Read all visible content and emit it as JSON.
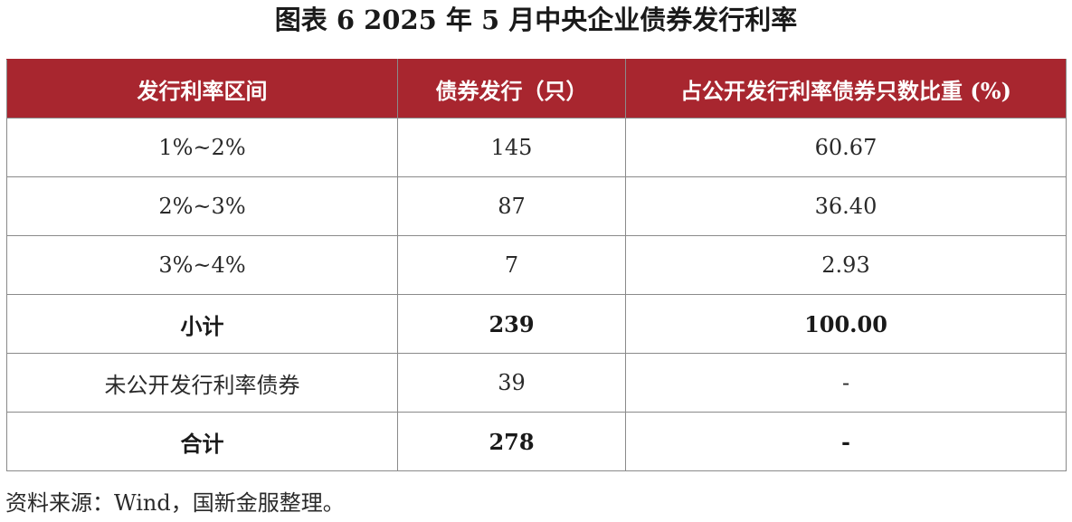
{
  "title": "图表 6  2025 年 5 月中央企业债券发行利率",
  "table": {
    "headers": [
      "发行利率区间",
      "债券发行（只）",
      "占公开发行利率债券只数比重 (%)"
    ],
    "rows": [
      {
        "cells": [
          "1%~2%",
          "145",
          "60.67"
        ],
        "bold": false
      },
      {
        "cells": [
          "2%~3%",
          "87",
          "36.40"
        ],
        "bold": false
      },
      {
        "cells": [
          "3%~4%",
          "7",
          "2.93"
        ],
        "bold": false
      },
      {
        "cells": [
          "小计",
          "239",
          "100.00"
        ],
        "bold": true
      },
      {
        "cells": [
          "未公开发行利率债券",
          "39",
          "-"
        ],
        "bold": false
      },
      {
        "cells": [
          "合计",
          "278",
          "-"
        ],
        "bold": true
      }
    ]
  },
  "source": "资料来源：Wind，国新金服整理。",
  "colors": {
    "header_bg": "#a8262f",
    "header_text": "#ffffff",
    "border": "#8a8a8a"
  }
}
